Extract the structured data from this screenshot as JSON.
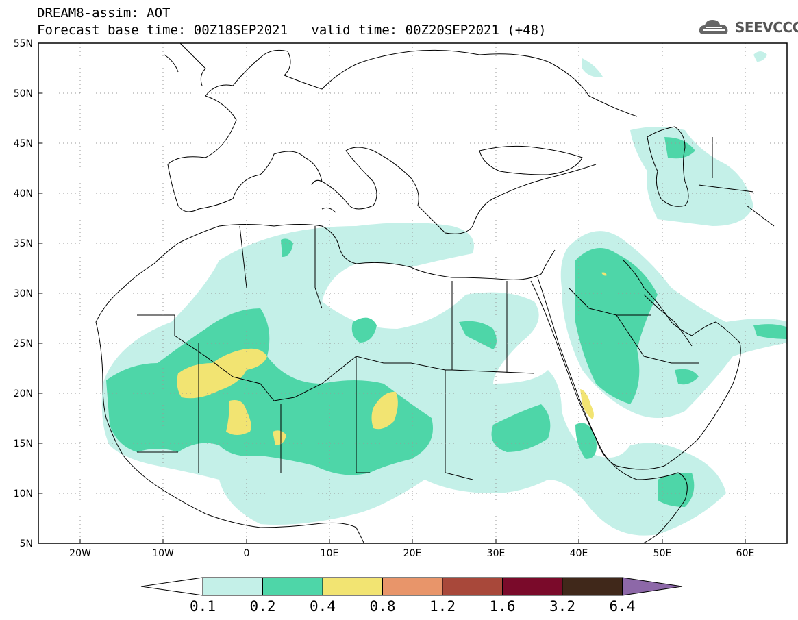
{
  "header": {
    "model_title": "DREAM8-assim: AOT",
    "base_time_label": "Forecast base time: 00Z18SEP2021",
    "valid_time_label": "valid time: 00Z20SEP2021 (+48)"
  },
  "logo": {
    "text": "SEEVCCC",
    "icon": "cloud-logo-icon"
  },
  "map": {
    "lat_ticks": [
      "55N",
      "50N",
      "45N",
      "40N",
      "35N",
      "30N",
      "25N",
      "20N",
      "15N",
      "10N",
      "5N"
    ],
    "lon_ticks": [
      "20W",
      "10W",
      "0",
      "10E",
      "20E",
      "30E",
      "40E",
      "50E",
      "60E"
    ],
    "lon_range": [
      -25,
      65
    ],
    "lat_range": [
      5,
      55
    ],
    "gridlines": "dotted"
  },
  "colorbar": {
    "levels": [
      "0.1",
      "0.2",
      "0.4",
      "0.8",
      "1.2",
      "1.6",
      "3.2",
      "6.4"
    ],
    "colors": [
      "#ffffff",
      "#c4f0e8",
      "#4ed6a8",
      "#f2e472",
      "#e8956a",
      "#a8483a",
      "#7a0a2a",
      "#40281a",
      "#8d68a8"
    ]
  }
}
